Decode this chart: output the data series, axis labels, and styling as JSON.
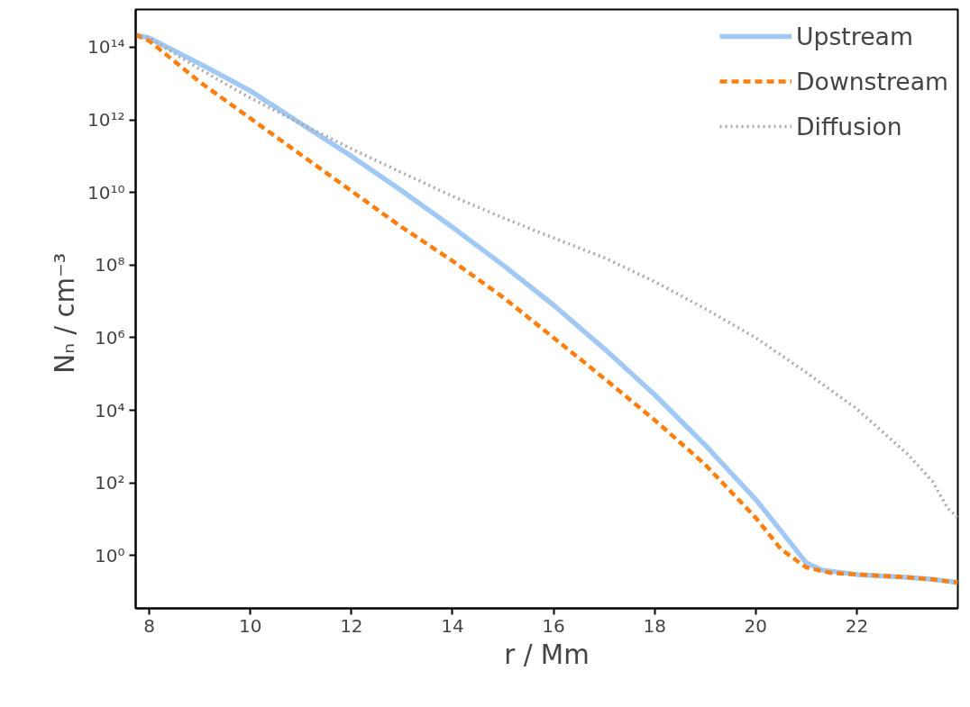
{
  "chart_data": {
    "type": "line",
    "xlabel": "r / Mm",
    "ylabel": "Nₙ  / cm⁻³",
    "log": "y",
    "grid": false,
    "legend": "top right",
    "xlim": [
      7.73,
      24.0
    ],
    "xticks": [
      8,
      10,
      12,
      14,
      16,
      18,
      20,
      22
    ],
    "ylim": [
      0.035,
      1100000000000000.0
    ],
    "yticks": [
      {
        "value": 1,
        "label": "10⁰"
      },
      {
        "value": 100,
        "label": "10²"
      },
      {
        "value": 10000,
        "label": "10⁴"
      },
      {
        "value": 1000000.0,
        "label": "10⁶"
      },
      {
        "value": 100000000.0,
        "label": "10⁸"
      },
      {
        "value": 10000000000.0,
        "label": "10¹⁰"
      },
      {
        "value": 1000000000000.0,
        "label": "10¹²"
      },
      {
        "value": 100000000000000.0,
        "label": "10¹⁴"
      }
    ],
    "series": [
      {
        "name": "Upstream",
        "color": "#a1c9f4",
        "line_style": "solid",
        "x": [
          7.73,
          8,
          9,
          10,
          11,
          12,
          13,
          14,
          15,
          16,
          17,
          18,
          19,
          20,
          20.5,
          21,
          21.3,
          22,
          23,
          23.5,
          24
        ],
        "values": [
          220000000000000.0,
          180000000000000.0,
          35000000000000.0,
          6300000000000.0,
          790000000000.0,
          100000000000.0,
          11000000000.0,
          1100000000.0,
          100000000.0,
          7900000.0,
          500000.0,
          27000.0,
          1100.0,
          35,
          4.8,
          0.63,
          0.4,
          0.3,
          0.25,
          0.22,
          0.18
        ]
      },
      {
        "name": "Downstream",
        "color": "#ff7f0e",
        "line_style": "dashed",
        "x": [
          7.73,
          8,
          9,
          10,
          11,
          12,
          13,
          14,
          15,
          16,
          17,
          18,
          19,
          20,
          20.5,
          21,
          21.5,
          22,
          23,
          23.5,
          24
        ],
        "values": [
          220000000000000.0,
          150000000000000.0,
          11000000000000.0,
          1100000000000.0,
          110000000000.0,
          11000000000.0,
          1100000000.0,
          130000000.0,
          13000000.0,
          1000000.0,
          76000.0,
          5400.0,
          320,
          11,
          1.5,
          0.47,
          0.33,
          0.3,
          0.25,
          0.22,
          0.18
        ]
      },
      {
        "name": "Diffusion",
        "color": "#aaaaaa",
        "line_style": "dotted",
        "x": [
          7.73,
          8,
          9,
          10,
          11,
          12,
          13,
          14,
          15,
          16,
          17,
          18,
          19,
          20,
          21,
          22,
          23,
          23.5,
          23.8,
          24
        ],
        "values": [
          220000000000000.0,
          180000000000000.0,
          25000000000000.0,
          4000000000000.0,
          790000000000.0,
          160000000000.0,
          35000000000.0,
          7900000000.0,
          2000000000.0,
          560000000.0,
          160000000.0,
          35000000.0,
          6300000.0,
          1000000.0,
          110000.0,
          11000.0,
          630,
          110,
          20,
          11
        ]
      }
    ]
  }
}
